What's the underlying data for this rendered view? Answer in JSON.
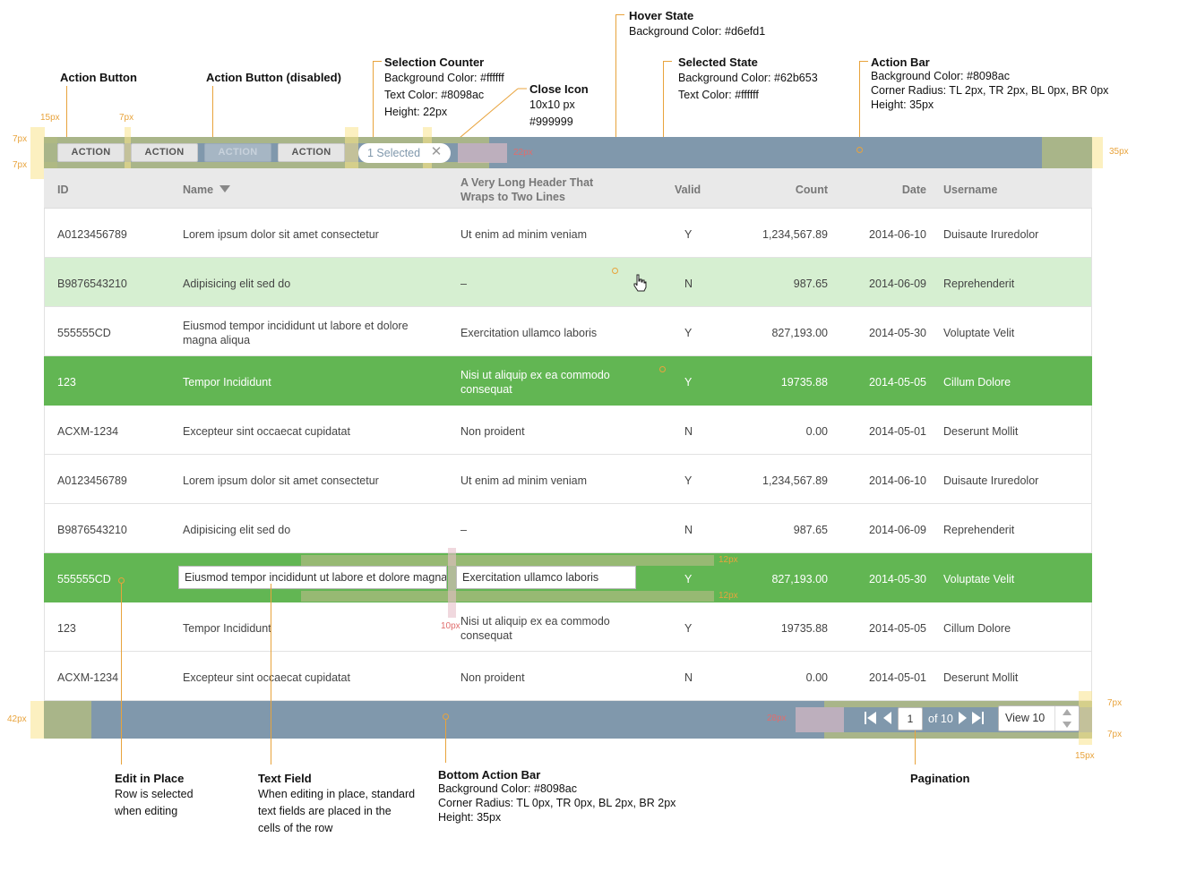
{
  "annotations": {
    "action_button": {
      "title": "Action Button"
    },
    "action_button_disabled": {
      "title": "Action Button (disabled)"
    },
    "selection_counter": {
      "title": "Selection Counter",
      "lines": [
        "Background Color: #ffffff",
        "Text Color: #8098ac",
        "Height: 22px"
      ]
    },
    "close_icon": {
      "title": "Close Icon",
      "lines": [
        "10x10 px",
        "#999999"
      ]
    },
    "hover_state": {
      "title": "Hover State",
      "lines": [
        "Background Color: #d6efd1"
      ]
    },
    "selected_state": {
      "title": "Selected State",
      "lines": [
        "Background Color: #62b653",
        "Text Color: #ffffff"
      ]
    },
    "action_bar": {
      "title": "Action Bar",
      "lines": [
        "Background Color: #8098ac",
        "Corner Radius: TL 2px, TR 2px, BL 0px, BR 0px",
        "Height: 35px"
      ]
    },
    "edit_in_place": {
      "title": "Edit in Place",
      "lines": [
        "Row is selected",
        "when editing"
      ]
    },
    "text_field": {
      "title": "Text Field",
      "lines": [
        "When editing in place, standard",
        "text fields are placed in the",
        "cells of the row"
      ]
    },
    "bottom_action_bar": {
      "title": "Bottom Action Bar",
      "lines": [
        "Background Color: #8098ac",
        "Corner Radius: TL 0px, TR 0px, BL 2px, BR 2px",
        "Height: 35px"
      ]
    },
    "pagination": {
      "title": "Pagination"
    }
  },
  "measurements": {
    "m15a": "15px",
    "m7a": "7px",
    "m7b": "7px",
    "m7c": "7px",
    "m15b": "15px",
    "m10a": "10px",
    "m22": "22px",
    "m35": "35px",
    "m42": "42px",
    "m28": "28px",
    "m7d": "7px",
    "m7e": "7px",
    "m15c": "15px",
    "m10b": "10px",
    "m12a": "12px",
    "m12b": "12px"
  },
  "action_bar": {
    "buttons": [
      "ACTION",
      "ACTION",
      "ACTION",
      "ACTION"
    ],
    "selection_counter": "1 Selected",
    "close_glyph": "✕"
  },
  "table": {
    "headers": {
      "id": "ID",
      "name": "Name",
      "long": "A Very Long Header That Wraps to Two Lines",
      "valid": "Valid",
      "count": "Count",
      "date": "Date",
      "username": "Username"
    },
    "rows": [
      {
        "id": "A0123456789",
        "name": "Lorem ipsum dolor sit amet consectetur",
        "long": "Ut enim ad minim veniam",
        "valid": "Y",
        "count": "1,234,567.89",
        "date": "2014-06-10",
        "username": "Duisaute Iruredolor"
      },
      {
        "id": "B9876543210",
        "name": "Adipisicing elit sed do",
        "long": "–",
        "valid": "N",
        "count": "987.65",
        "date": "2014-06-09",
        "username": "Reprehenderit"
      },
      {
        "id": "555555CD",
        "name": "Eiusmod tempor incididunt ut labore et dolore magna aliqua",
        "long": "Exercitation ullamco laboris",
        "valid": "Y",
        "count": "827,193.00",
        "date": "2014-05-30",
        "username": "Voluptate Velit"
      },
      {
        "id": "123",
        "name": "Tempor Incididunt",
        "long": "Nisi ut aliquip ex ea commodo consequat",
        "valid": "Y",
        "count": "19735.88",
        "date": "2014-05-05",
        "username": "Cillum Dolore"
      },
      {
        "id": "ACXM-1234",
        "name": "Excepteur sint occaecat cupidatat",
        "long": "Non proident",
        "valid": "N",
        "count": "0.00",
        "date": "2014-05-01",
        "username": "Deserunt Mollit"
      },
      {
        "id": "A0123456789",
        "name": "Lorem ipsum dolor sit amet consectetur",
        "long": "Ut enim ad minim veniam",
        "valid": "Y",
        "count": "1,234,567.89",
        "date": "2014-06-10",
        "username": "Duisaute Iruredolor"
      },
      {
        "id": "B9876543210",
        "name": "Adipisicing elit sed do",
        "long": "–",
        "valid": "N",
        "count": "987.65",
        "date": "2014-06-09",
        "username": "Reprehenderit"
      },
      {
        "id": "555555CD",
        "name": "Eiusmod tempor incididunt ut labore et dolore magna aliqua",
        "long": "Exercitation ullamco laboris",
        "valid": "Y",
        "count": "827,193.00",
        "date": "2014-05-30",
        "username": "Voluptate Velit"
      },
      {
        "id": "123",
        "name": "Tempor Incididunt",
        "long": "Nisi ut aliquip ex ea commodo consequat",
        "valid": "Y",
        "count": "19735.88",
        "date": "2014-05-05",
        "username": "Cillum Dolore"
      },
      {
        "id": "ACXM-1234",
        "name": "Excepteur sint occaecat cupidatat",
        "long": "Non proident",
        "valid": "N",
        "count": "0.00",
        "date": "2014-05-01",
        "username": "Deserunt Mollit"
      }
    ]
  },
  "pagination": {
    "page": "1",
    "of_label": "of 10",
    "view": "View 10"
  },
  "colors": {
    "bar": "#8098ac",
    "hover": "#d6efd1",
    "selected": "#62b653",
    "close_icon": "#999999"
  }
}
